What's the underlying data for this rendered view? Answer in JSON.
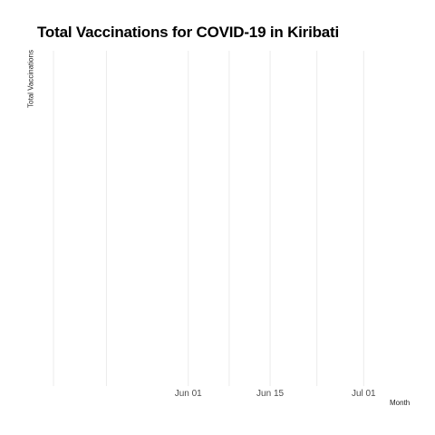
{
  "chart_data": {
    "type": "line",
    "title": "Total Vaccinations for COVID-19 in Kiribati",
    "xlabel": "Month",
    "ylabel": "Total Vaccinations",
    "x_range": [
      "2021-05-06",
      "2021-07-07"
    ],
    "x_major_ticks": [
      {
        "date": "2021-06-01",
        "label": "Jun 01"
      },
      {
        "date": "2021-06-15",
        "label": "Jun 15"
      },
      {
        "date": "2021-07-01",
        "label": "Jul 01"
      }
    ],
    "x_minor_gridlines": [
      "2021-05-18",
      "2021-06-08",
      "2021-06-23"
    ],
    "series": [],
    "grid": "vertical",
    "legend": "none"
  },
  "colors": {
    "background": "#ffffff",
    "gridline": "#ebebeb",
    "tick_text": "#4d4d4d",
    "title": "#000000"
  }
}
